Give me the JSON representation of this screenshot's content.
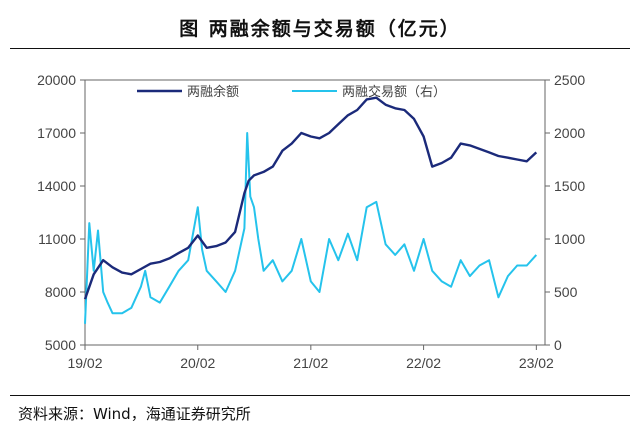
{
  "page": {
    "title": "图  两融余额与交易额（亿元）",
    "source": "资料来源：Wind，海通证券研究所"
  },
  "colors": {
    "balance": "#1b2a7a",
    "turnover": "#25c3ec",
    "axis": "#666666"
  },
  "chart_data": {
    "type": "line",
    "title": "图  两融余额与交易额（亿元）",
    "x_ticks": [
      "19/02",
      "20/02",
      "21/02",
      "22/02",
      "23/02"
    ],
    "y_left": {
      "ticks": [
        "20000",
        "17000",
        "14000",
        "11000",
        "8000",
        "5000"
      ],
      "range": [
        5000,
        20000
      ]
    },
    "y_right": {
      "ticks": [
        "2500",
        "2000",
        "1500",
        "1000",
        "500",
        "0"
      ],
      "range": [
        0,
        2500
      ]
    },
    "legend": {
      "position": "top",
      "balance": "两融余额",
      "turnover": "两融交易额（右）"
    },
    "series": [
      {
        "key": "balance",
        "name": "两融余额",
        "axis": "left",
        "x": [
          "2019-02",
          "2019-03",
          "2019-04",
          "2019-05",
          "2019-06",
          "2019-07",
          "2019-08",
          "2019-09",
          "2019-10",
          "2019-11",
          "2019-12",
          "2020-01",
          "2020-02",
          "2020-03",
          "2020-04",
          "2020-05",
          "2020-06",
          "2020-07",
          "2020-07-15",
          "2020-08",
          "2020-09",
          "2020-10",
          "2020-11",
          "2020-12",
          "2021-01",
          "2021-02",
          "2021-03",
          "2021-04",
          "2021-05",
          "2021-06",
          "2021-07",
          "2021-08",
          "2021-09",
          "2021-10",
          "2021-11",
          "2021-12",
          "2022-01",
          "2022-02",
          "2022-03",
          "2022-04",
          "2022-05",
          "2022-06",
          "2022-07",
          "2022-08",
          "2022-09",
          "2022-10",
          "2022-11",
          "2022-12",
          "2023-01",
          "2023-02"
        ],
        "values": [
          7600,
          9000,
          9800,
          9400,
          9100,
          9000,
          9300,
          9600,
          9700,
          9900,
          10200,
          10500,
          11200,
          10500,
          10600,
          10800,
          11400,
          13600,
          14300,
          14600,
          14800,
          15100,
          16000,
          16400,
          17000,
          16800,
          16700,
          17000,
          17500,
          18000,
          18300,
          18900,
          19000,
          18600,
          18400,
          18300,
          17800,
          16800,
          15100,
          15300,
          15600,
          16400,
          16300,
          16100,
          15900,
          15700,
          15600,
          15500,
          15400,
          15900
        ]
      },
      {
        "key": "turnover",
        "name": "两融交易额（右）",
        "axis": "right",
        "x": [
          "2019-02",
          "2019-02-15",
          "2019-03",
          "2019-03-15",
          "2019-04",
          "2019-04-15",
          "2019-05",
          "2019-06",
          "2019-07",
          "2019-08",
          "2019-08-15",
          "2019-09",
          "2019-10",
          "2019-11",
          "2019-12",
          "2020-01",
          "2020-02",
          "2020-02-15",
          "2020-03",
          "2020-04",
          "2020-05",
          "2020-06",
          "2020-07",
          "2020-07-10",
          "2020-07-20",
          "2020-08",
          "2020-08-15",
          "2020-09",
          "2020-10",
          "2020-11",
          "2020-12",
          "2021-01",
          "2021-02",
          "2021-03",
          "2021-04",
          "2021-05",
          "2021-06",
          "2021-07",
          "2021-08",
          "2021-09",
          "2021-10",
          "2021-11",
          "2021-12",
          "2022-01",
          "2022-02",
          "2022-03",
          "2022-04",
          "2022-05",
          "2022-06",
          "2022-07",
          "2022-08",
          "2022-09",
          "2022-10",
          "2022-11",
          "2022-12",
          "2023-01",
          "2023-02"
        ],
        "values": [
          200,
          1150,
          700,
          1080,
          500,
          400,
          300,
          300,
          350,
          550,
          700,
          450,
          400,
          550,
          700,
          800,
          1300,
          900,
          700,
          600,
          500,
          700,
          1100,
          2000,
          1400,
          1300,
          1000,
          700,
          800,
          600,
          700,
          1000,
          600,
          500,
          1000,
          800,
          1050,
          800,
          1300,
          1350,
          950,
          850,
          950,
          700,
          1000,
          700,
          600,
          550,
          800,
          650,
          750,
          800,
          450,
          650,
          750,
          750,
          850
        ]
      }
    ]
  }
}
